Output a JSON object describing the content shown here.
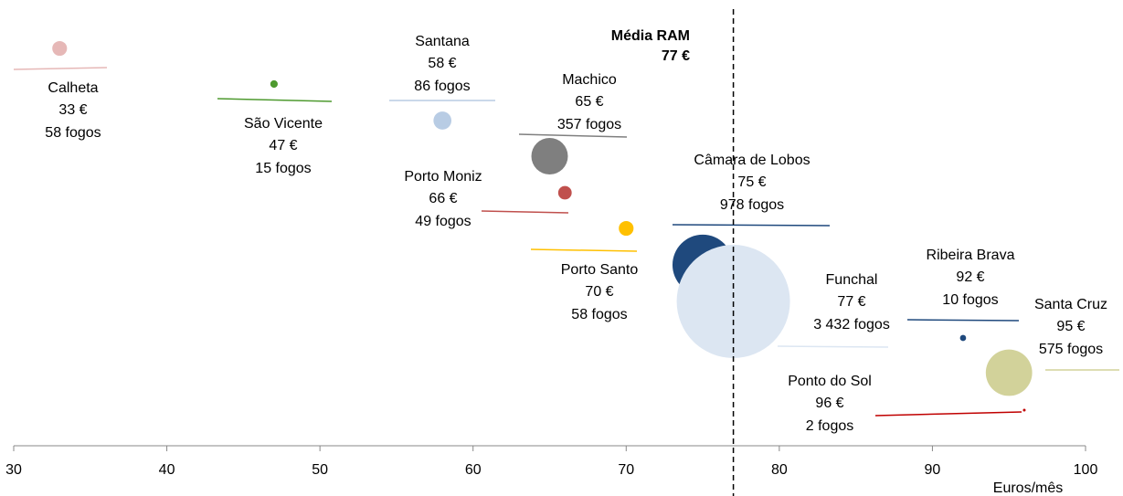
{
  "chart_data": {
    "type": "bubble",
    "x_label": "Euros/mês",
    "xlim": [
      30,
      100
    ],
    "xticks": [
      30,
      40,
      50,
      60,
      70,
      80,
      90,
      100
    ],
    "reference": {
      "name": "Média RAM",
      "value": 77,
      "value_label": "77 €"
    },
    "points": [
      {
        "name": "Calheta",
        "x": 33,
        "value_label": "33 €",
        "size": 58,
        "size_label": "58 fogos",
        "color": "#e6b8b7"
      },
      {
        "name": "São Vicente",
        "x": 47,
        "value_label": "47 €",
        "size": 15,
        "size_label": "15 fogos",
        "color": "#4e9a2f"
      },
      {
        "name": "Santana",
        "x": 58,
        "value_label": "58 €",
        "size": 86,
        "size_label": "86 fogos",
        "color": "#b8cce4"
      },
      {
        "name": "Machico",
        "x": 65,
        "value_label": "65 €",
        "size": 357,
        "size_label": "357 fogos",
        "color": "#7f7f7f"
      },
      {
        "name": "Porto Moniz",
        "x": 66,
        "value_label": "66 €",
        "size": 49,
        "size_label": "49 fogos",
        "color": "#c0504d"
      },
      {
        "name": "Porto Santo",
        "x": 70,
        "value_label": "70 €",
        "size": 58,
        "size_label": "58 fogos",
        "color": "#ffc000"
      },
      {
        "name": "Câmara de Lobos",
        "x": 75,
        "value_label": "75 €",
        "size": 978,
        "size_label": "978 fogos",
        "color": "#1f497d"
      },
      {
        "name": "Funchal",
        "x": 77,
        "value_label": "77 €",
        "size": 3432,
        "size_label": "3 432 fogos",
        "color": "#dce6f2"
      },
      {
        "name": "Ribeira Brava",
        "x": 92,
        "value_label": "92 €",
        "size": 10,
        "size_label": "10 fogos",
        "color": "#1f497d"
      },
      {
        "name": "Santa Cruz",
        "x": 95,
        "value_label": "95 €",
        "size": 575,
        "size_label": "575 fogos",
        "color": "#d2d29a"
      },
      {
        "name": "Ponto do Sol",
        "x": 96,
        "value_label": "96 €",
        "size": 2,
        "size_label": "2 fogos",
        "color": "#c00000"
      }
    ]
  }
}
